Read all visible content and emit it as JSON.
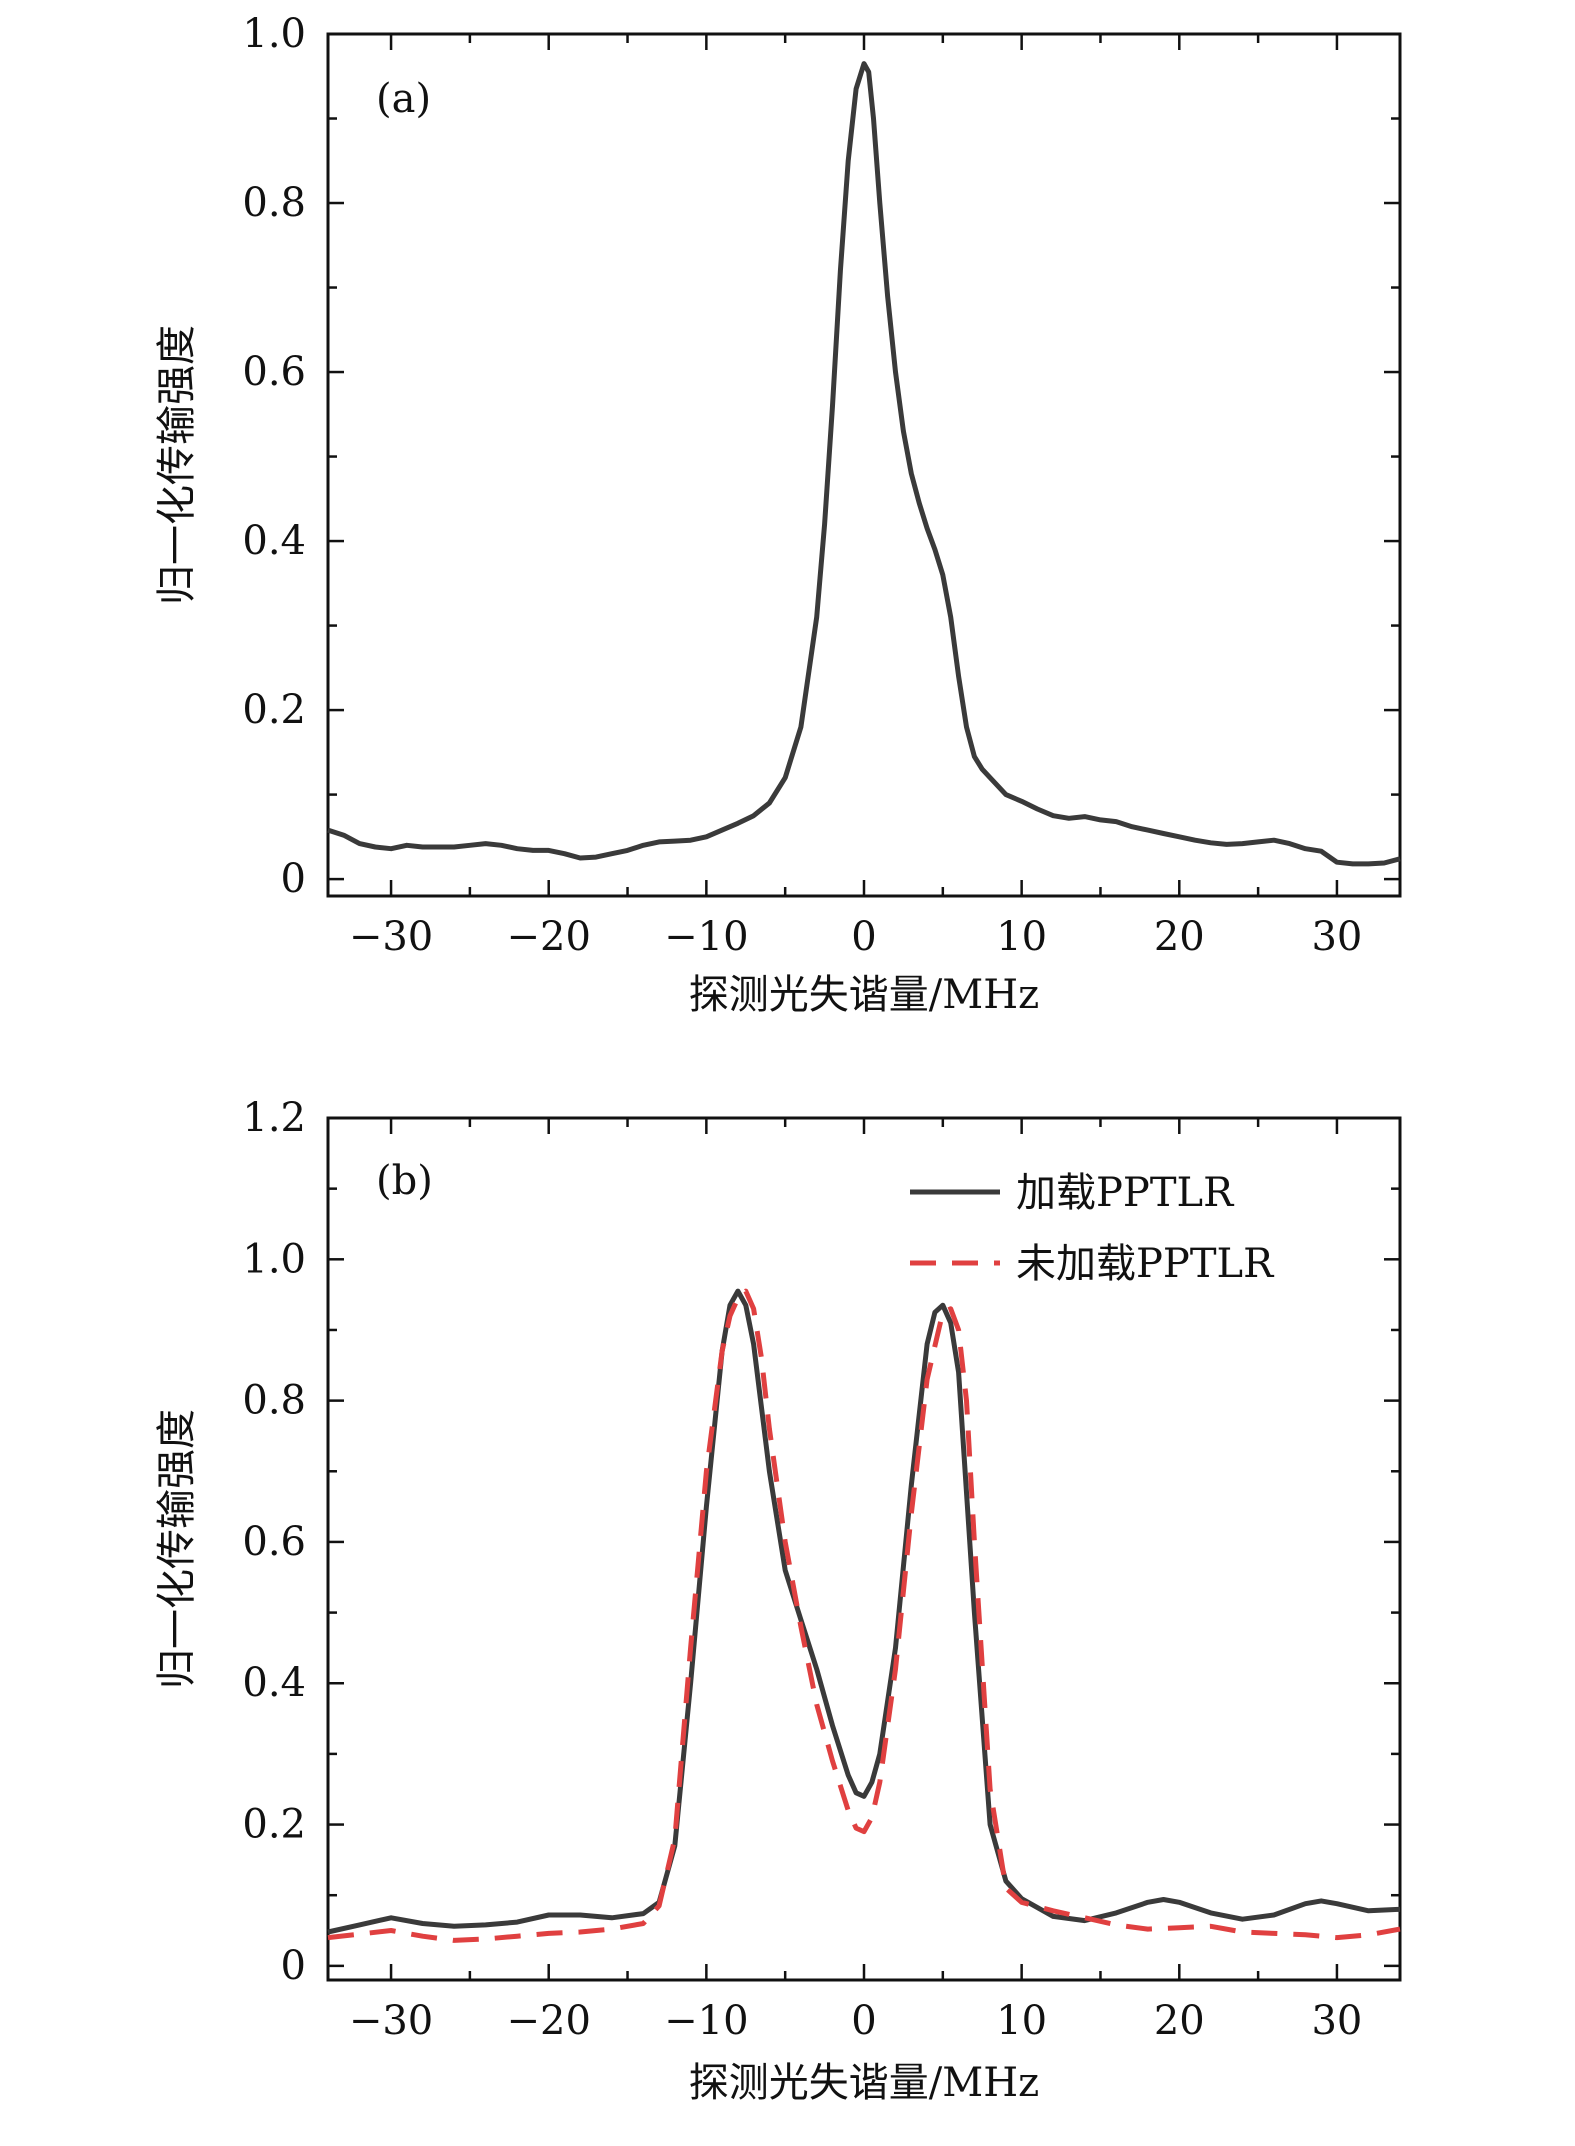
{
  "chart_data": [
    {
      "type": "line",
      "panel_label": "(a)",
      "xlabel": "探测光失谐量/MHz",
      "ylabel": "归一化传输强度",
      "xlim": [
        -34,
        34
      ],
      "ylim": [
        -0.02,
        1.0
      ],
      "xticks": [
        -30,
        -20,
        -10,
        0,
        10,
        20,
        30
      ],
      "xtick_labels": [
        "−30",
        "−20",
        "−10",
        "0",
        "10",
        "20",
        "30"
      ],
      "yticks": [
        0,
        0.2,
        0.4,
        0.6,
        0.8,
        1.0
      ],
      "ytick_labels": [
        "0",
        "0.2",
        "0.4",
        "0.6",
        "0.8",
        "1.0"
      ],
      "grid": false,
      "series": [
        {
          "color": "#3a3a3a",
          "style": "solid",
          "x": [
            -34,
            -33,
            -32,
            -31,
            -30,
            -29,
            -28,
            -27,
            -26,
            -25,
            -24,
            -23,
            -22,
            -21,
            -20,
            -19,
            -18,
            -17,
            -16,
            -15,
            -14,
            -13,
            -12,
            -11,
            -10,
            -9,
            -8,
            -7,
            -6,
            -5,
            -4,
            -3,
            -2.5,
            -2,
            -1.5,
            -1,
            -0.5,
            0,
            0.3,
            0.6,
            1,
            1.5,
            2,
            2.5,
            3,
            3.5,
            4,
            4.5,
            5,
            5.5,
            6,
            6.5,
            7,
            7.5,
            8,
            9,
            10,
            11,
            12,
            13,
            14,
            15,
            16,
            17,
            18,
            19,
            20,
            21,
            22,
            23,
            24,
            25,
            26,
            27,
            28,
            29,
            30,
            31,
            32,
            33,
            34
          ],
          "y": [
            0.058,
            0.052,
            0.042,
            0.038,
            0.036,
            0.04,
            0.038,
            0.038,
            0.038,
            0.04,
            0.042,
            0.04,
            0.036,
            0.034,
            0.034,
            0.03,
            0.025,
            0.026,
            0.03,
            0.034,
            0.04,
            0.044,
            0.045,
            0.046,
            0.05,
            0.058,
            0.066,
            0.075,
            0.09,
            0.12,
            0.18,
            0.31,
            0.42,
            0.56,
            0.72,
            0.85,
            0.935,
            0.965,
            0.955,
            0.9,
            0.8,
            0.69,
            0.6,
            0.53,
            0.48,
            0.445,
            0.415,
            0.39,
            0.36,
            0.31,
            0.24,
            0.18,
            0.145,
            0.13,
            0.12,
            0.1,
            0.092,
            0.083,
            0.075,
            0.072,
            0.074,
            0.07,
            0.068,
            0.062,
            0.058,
            0.054,
            0.05,
            0.046,
            0.043,
            0.041,
            0.042,
            0.044,
            0.046,
            0.042,
            0.036,
            0.033,
            0.02,
            0.018,
            0.018,
            0.019,
            0.024
          ]
        }
      ]
    },
    {
      "type": "line",
      "panel_label": "(b)",
      "xlabel": "探测光失谐量/MHz",
      "ylabel": "归一化传输强度",
      "xlim": [
        -34,
        34
      ],
      "ylim": [
        -0.02,
        1.2
      ],
      "xticks": [
        -30,
        -20,
        -10,
        0,
        10,
        20,
        30
      ],
      "xtick_labels": [
        "−30",
        "−20",
        "−10",
        "0",
        "10",
        "20",
        "30"
      ],
      "yticks": [
        0,
        0.2,
        0.4,
        0.6,
        0.8,
        1.0,
        1.2
      ],
      "ytick_labels": [
        "0",
        "0.2",
        "0.4",
        "0.6",
        "0.8",
        "1.0",
        "1.2"
      ],
      "grid": false,
      "legend_position": "top-right",
      "series": [
        {
          "name": "加载PPTLR",
          "color": "#3a3a3a",
          "style": "solid",
          "x": [
            -34,
            -32,
            -30,
            -28,
            -26,
            -24,
            -22,
            -20,
            -18,
            -16,
            -14,
            -13,
            -12,
            -11,
            -10,
            -9,
            -8.5,
            -8,
            -7.5,
            -7,
            -6,
            -5,
            -4,
            -3,
            -2,
            -1,
            -0.5,
            0,
            0.5,
            1,
            2,
            3,
            4,
            4.5,
            5,
            5.5,
            6,
            7,
            8,
            9,
            10,
            12,
            14,
            16,
            18,
            19,
            20,
            22,
            24,
            26,
            28,
            29,
            30,
            32,
            34
          ],
          "y": [
            0.048,
            0.058,
            0.068,
            0.06,
            0.056,
            0.058,
            0.062,
            0.072,
            0.072,
            0.068,
            0.074,
            0.09,
            0.17,
            0.4,
            0.65,
            0.87,
            0.935,
            0.955,
            0.935,
            0.88,
            0.7,
            0.56,
            0.49,
            0.42,
            0.34,
            0.27,
            0.245,
            0.24,
            0.26,
            0.3,
            0.45,
            0.68,
            0.88,
            0.925,
            0.935,
            0.91,
            0.84,
            0.5,
            0.2,
            0.12,
            0.095,
            0.07,
            0.064,
            0.075,
            0.09,
            0.094,
            0.09,
            0.075,
            0.066,
            0.072,
            0.088,
            0.092,
            0.088,
            0.078,
            0.08
          ]
        },
        {
          "name": "未加载PPTLR",
          "color": "#e04040",
          "style": "dashed",
          "x": [
            -34,
            -32,
            -30,
            -28,
            -26,
            -24,
            -22,
            -20,
            -18,
            -16,
            -14,
            -13,
            -12,
            -11,
            -10,
            -9,
            -8.5,
            -8,
            -7.5,
            -7,
            -6.5,
            -6,
            -5,
            -4,
            -3,
            -2,
            -1,
            -0.5,
            0,
            0.5,
            1,
            2,
            3,
            4,
            5,
            5.5,
            6,
            6.5,
            7,
            8,
            9,
            10,
            12,
            14,
            16,
            18,
            20,
            22,
            24,
            26,
            28,
            30,
            32,
            34
          ],
          "y": [
            0.04,
            0.045,
            0.05,
            0.042,
            0.036,
            0.038,
            0.042,
            0.046,
            0.048,
            0.052,
            0.06,
            0.085,
            0.18,
            0.45,
            0.7,
            0.87,
            0.92,
            0.945,
            0.955,
            0.93,
            0.86,
            0.76,
            0.6,
            0.48,
            0.37,
            0.29,
            0.22,
            0.195,
            0.19,
            0.21,
            0.26,
            0.42,
            0.64,
            0.83,
            0.925,
            0.93,
            0.9,
            0.8,
            0.6,
            0.25,
            0.11,
            0.09,
            0.078,
            0.068,
            0.058,
            0.052,
            0.054,
            0.056,
            0.048,
            0.046,
            0.044,
            0.04,
            0.044,
            0.052
          ]
        }
      ]
    }
  ]
}
